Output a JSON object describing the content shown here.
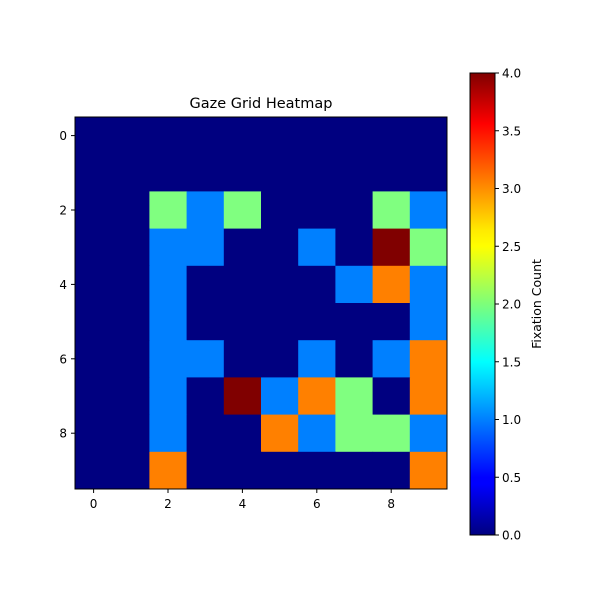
{
  "chart_data": {
    "type": "heatmap",
    "title": "Gaze Grid Heatmap",
    "xlabel": "",
    "ylabel": "",
    "x_ticks": [
      "0",
      "2",
      "4",
      "6",
      "8"
    ],
    "y_ticks": [
      "0",
      "2",
      "4",
      "6",
      "8"
    ],
    "rows": 10,
    "cols": 10,
    "values": [
      [
        0,
        0,
        0,
        0,
        0,
        0,
        0,
        0,
        0,
        0
      ],
      [
        0,
        0,
        0,
        0,
        0,
        0,
        0,
        0,
        0,
        0
      ],
      [
        0,
        0,
        2,
        1,
        2,
        0,
        0,
        0,
        2,
        1
      ],
      [
        0,
        0,
        1,
        1,
        0,
        0,
        1,
        0,
        4,
        2
      ],
      [
        0,
        0,
        1,
        0,
        0,
        0,
        0,
        1,
        3,
        1
      ],
      [
        0,
        0,
        1,
        0,
        0,
        0,
        0,
        0,
        0,
        1
      ],
      [
        0,
        0,
        1,
        1,
        0,
        0,
        1,
        0,
        1,
        3
      ],
      [
        0,
        0,
        1,
        0,
        4,
        1,
        3,
        2,
        0,
        3
      ],
      [
        0,
        0,
        1,
        0,
        0,
        3,
        1,
        2,
        2,
        1
      ],
      [
        0,
        0,
        3,
        0,
        0,
        0,
        0,
        0,
        0,
        3
      ]
    ],
    "colormap": "jet",
    "vmin": 0,
    "vmax": 4,
    "colorbar_label": "Fixation Count",
    "colorbar_ticks": [
      "0.0",
      "0.5",
      "1.0",
      "1.5",
      "2.0",
      "2.5",
      "3.0",
      "3.5",
      "4.0"
    ],
    "grid": false
  }
}
